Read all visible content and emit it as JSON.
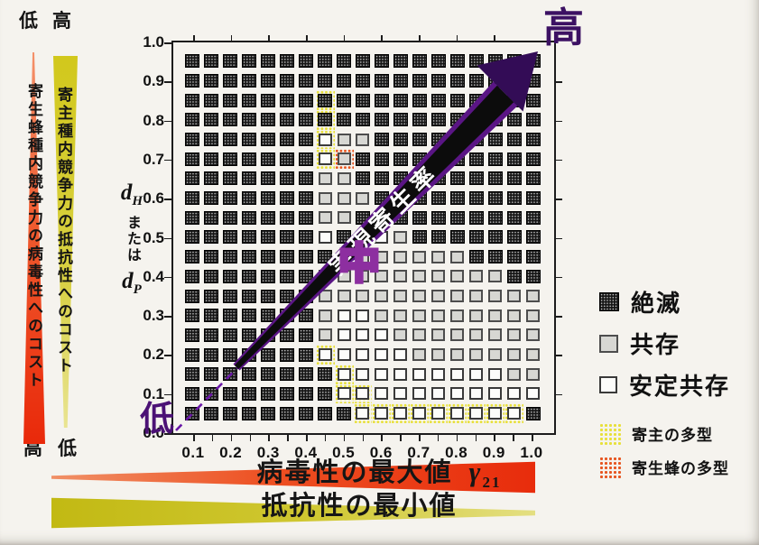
{
  "figure": {
    "top_axis_labels": {
      "red_top": "低",
      "yellow_top": "高",
      "red_bottom": "高",
      "yellow_bottom": "低"
    },
    "left_bar_red_text": "寄生蜂種内競争力の病毒性へのコスト",
    "left_bar_yellow_text": "寄主種内競争力の抵抗性へのコスト",
    "y_axis_var1": "d",
    "y_axis_var1_sub": "H",
    "y_axis_connector": "または",
    "y_axis_var2": "d",
    "y_axis_var2_sub": "P",
    "corner_low": "低",
    "center_mid": "中",
    "corner_high": "高",
    "band_label": "実現寄生率",
    "x_wedge_red_label": "病毒性の最大値",
    "x_wedge_red_symbol": "γ",
    "x_wedge_red_symbol_sub": "21",
    "x_wedge_olive_label": "抵抗性の最小値"
  },
  "legend": {
    "items": [
      {
        "label": "絶滅"
      },
      {
        "label": "共存"
      },
      {
        "label": "安定共存"
      }
    ],
    "poly_items": [
      {
        "label": "寄主の多型"
      },
      {
        "label": "寄生蜂の多型"
      }
    ]
  },
  "colors": {
    "purple_dark": "#3c1163",
    "purple_mid": "#8d2fa0",
    "band_purple": "#5a1585",
    "red": "#e82c0c",
    "olive": "#ccc31d",
    "yellow_halo": "#e8e03a",
    "orange_halo": "#e7551f"
  },
  "chart_data": {
    "type": "heatmap",
    "x_axis_label": "病毒性の最大値 γ21",
    "y_axis_label": "dH または dP",
    "x_tick_labels": [
      "0.1",
      "0.2",
      "0.3",
      "0.4",
      "0.5",
      "0.6",
      "0.7",
      "0.8",
      "0.9",
      "1.0"
    ],
    "y_tick_labels": [
      "1.0",
      "0.9",
      "0.8",
      "0.7",
      "0.6",
      "0.5",
      "0.4",
      "0.3",
      "0.2",
      "0.1",
      "0.0"
    ],
    "x_values": [
      0.1,
      0.15,
      0.2,
      0.25,
      0.3,
      0.35,
      0.4,
      0.45,
      0.5,
      0.55,
      0.6,
      0.65,
      0.7,
      0.75,
      0.8,
      0.85,
      0.9,
      0.95,
      1.0
    ],
    "y_values_top_to_bottom": [
      0.95,
      0.9,
      0.85,
      0.8,
      0.75,
      0.7,
      0.65,
      0.6,
      0.55,
      0.5,
      0.45,
      0.4,
      0.35,
      0.3,
      0.25,
      0.2,
      0.15,
      0.1,
      0.05
    ],
    "cell_codes": {
      "D": "絶滅",
      "G": "共存",
      "W": "安定共存",
      "Y": "安定共存＋寄主の多型",
      "H": "絶滅＋寄主の多型",
      "O": "共存＋寄生蜂の多型"
    },
    "rows": [
      "DDDDDDDDDDDDDDDDDDD",
      "DDDDDDDDDDDDDDDDDDD",
      "DDDDDDDHDDDDDDDDDDD",
      "DDDDDDDHDDDDDDDDDDD",
      "DDDDDDDYGGDDDDDDDDD",
      "DDDDDDDYODDDDDDDDDD",
      "DDDDDDDGGDDDDDDDDDD",
      "DDDDDDDGGGDDDDDDDDD",
      "DDDDDDDGGDWDDDDDDDD",
      "DDDDDDDWDWWGDDDDDDD",
      "DDDDDDDDWGGGGGGDDDD",
      "DDDDDDDWGGGGGGGGGDD",
      "DDDDDDDGGGGGGGGGGGG",
      "DDDDDDDGWWGGGGGGGGG",
      "DDDDDDDGWWWGGGGGGGG",
      "DDDDDDDYWWWWGGGGGGG",
      "DDDDDDDDYWWWWWWWWGG",
      "DDDDDDDDYYWWWWWWWWW",
      "DDDDDDDDDYYYYYYYYYD"
    ],
    "diagonal": {
      "label": "実現寄生率",
      "start": "低",
      "middle": "中",
      "end": "高",
      "direction": "from (0,0) to (1,1)"
    },
    "grid": "off",
    "legend_position": "right"
  }
}
